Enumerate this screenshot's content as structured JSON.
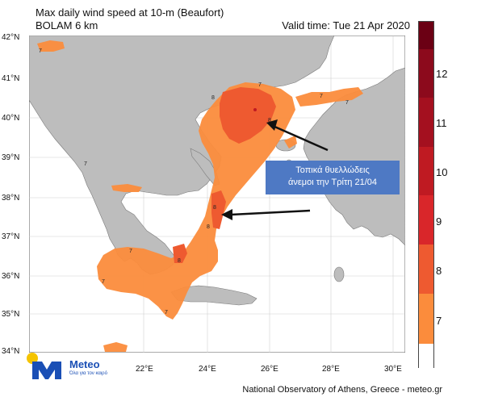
{
  "header": {
    "title_line1": "Max daily wind speed at 10-m (Beaufort)",
    "title_line2": "BOLAM 6 km",
    "valid_time": "Valid time: Tue 21 Apr 2020"
  },
  "axes": {
    "lat_labels": [
      "42°N",
      "41°N",
      "40°N",
      "39°N",
      "38°N",
      "37°N",
      "36°N",
      "35°N",
      "34°N"
    ],
    "lon_labels": [
      "22°E",
      "24°E",
      "26°E",
      "28°E",
      "30°E"
    ]
  },
  "colorbar": {
    "ticks": [
      "12",
      "11",
      "10",
      "9",
      "8",
      "7"
    ],
    "colors": {
      "top": "#6b0014",
      "13": "#8c0a1c",
      "12": "#a4101f",
      "11": "#bf1a22",
      "10": "#d9262a",
      "9": "#ee5a30",
      "8": "#fb8c3c",
      "7": "#ffffff"
    }
  },
  "annotation": {
    "line1": "Τοπικά θυελλώδεις",
    "line2": "άνεμοι την Τρίτη 21/04"
  },
  "contour_labels": {
    "seven": "7",
    "eight": "8"
  },
  "logo": {
    "brand": "Meteo",
    "tagline": "Όλα για τον καιρό"
  },
  "footer": {
    "credit": "National Observatory of Athens, Greece - meteo.gr"
  }
}
